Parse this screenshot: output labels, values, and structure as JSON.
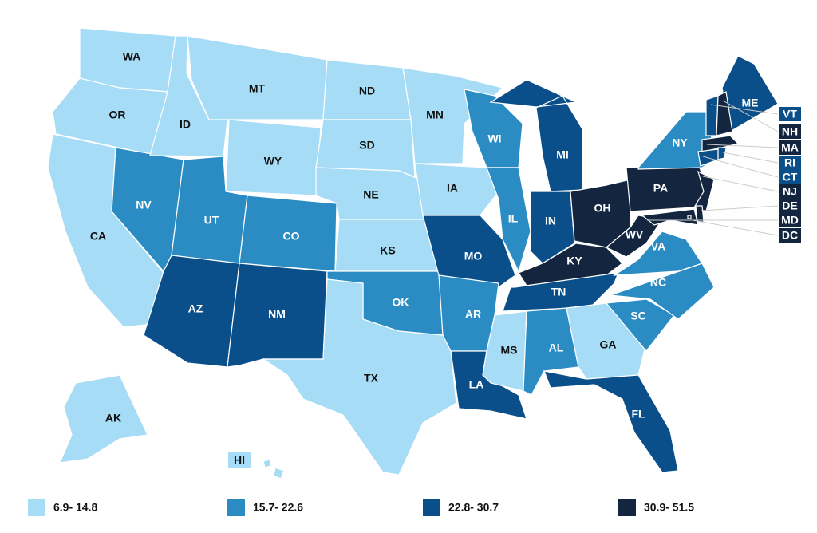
{
  "states": [
    {
      "label": "WA",
      "color": "#a6dcf6"
    },
    {
      "label": "OR",
      "color": "#a6dcf6"
    },
    {
      "label": "CA",
      "color": "#a6dcf6"
    },
    {
      "label": "NV",
      "color": "#2b8cc4"
    },
    {
      "label": "ID",
      "color": "#a6dcf6"
    },
    {
      "label": "MT",
      "color": "#a6dcf6"
    },
    {
      "label": "WY",
      "color": "#a6dcf6"
    },
    {
      "label": "UT",
      "color": "#2b8cc4"
    },
    {
      "label": "AZ",
      "color": "#0b4f8a"
    },
    {
      "label": "CO",
      "color": "#2b8cc4"
    },
    {
      "label": "NM",
      "color": "#0b4f8a"
    },
    {
      "label": "ND",
      "color": "#a6dcf6"
    },
    {
      "label": "SD",
      "color": "#a6dcf6"
    },
    {
      "label": "NE",
      "color": "#a6dcf6"
    },
    {
      "label": "KS",
      "color": "#a6dcf6"
    },
    {
      "label": "OK",
      "color": "#2b8cc4"
    },
    {
      "label": "TX",
      "color": "#a6dcf6"
    },
    {
      "label": "MN",
      "color": "#a6dcf6"
    },
    {
      "label": "IA",
      "color": "#a6dcf6"
    },
    {
      "label": "MO",
      "color": "#0b4f8a"
    },
    {
      "label": "AR",
      "color": "#2b8cc4"
    },
    {
      "label": "LA",
      "color": "#0b4f8a"
    },
    {
      "label": "WI",
      "color": "#2b8cc4"
    },
    {
      "label": "IL",
      "color": "#2b8cc4"
    },
    {
      "label": "MI",
      "color": "#0b4f8a"
    },
    {
      "label": "IN",
      "color": "#0b4f8a"
    },
    {
      "label": "OH",
      "color": "#13253f"
    },
    {
      "label": "KY",
      "color": "#13253f"
    },
    {
      "label": "TN",
      "color": "#0b4f8a"
    },
    {
      "label": "MS",
      "color": "#a6dcf6"
    },
    {
      "label": "AL",
      "color": "#2b8cc4"
    },
    {
      "label": "GA",
      "color": "#a6dcf6"
    },
    {
      "label": "FL",
      "color": "#0b4f8a"
    },
    {
      "label": "SC",
      "color": "#2b8cc4"
    },
    {
      "label": "NC",
      "color": "#2b8cc4"
    },
    {
      "label": "VA",
      "color": "#2b8cc4"
    },
    {
      "label": "WV",
      "color": "#13253f"
    },
    {
      "label": "PA",
      "color": "#13253f"
    },
    {
      "label": "NY",
      "color": "#2b8cc4"
    },
    {
      "label": "ME",
      "color": "#0b4f8a"
    },
    {
      "label": "AK",
      "color": "#a6dcf6"
    },
    {
      "label": "HI",
      "color": "#a6dcf6"
    },
    {
      "label": "VT",
      "color": "#0b4f8a"
    },
    {
      "label": "NH",
      "color": "#13253f"
    },
    {
      "label": "MA",
      "color": "#13253f"
    },
    {
      "label": "RI",
      "color": "#0b4f8a"
    },
    {
      "label": "CT",
      "color": "#0b4f8a"
    },
    {
      "label": "NJ",
      "color": "#13253f"
    },
    {
      "label": "DE",
      "color": "#13253f"
    },
    {
      "label": "MD",
      "color": "#13253f"
    },
    {
      "label": "DC",
      "color": "#13253f"
    }
  ],
  "legend": [
    {
      "label": "6.9- 14.8",
      "color": "#a6dcf6"
    },
    {
      "label": "15.7- 22.6",
      "color": "#2b8cc4"
    },
    {
      "label": "22.8- 30.7",
      "color": "#0b4f8a"
    },
    {
      "label": "30.9- 51.5",
      "color": "#13253f"
    }
  ]
}
